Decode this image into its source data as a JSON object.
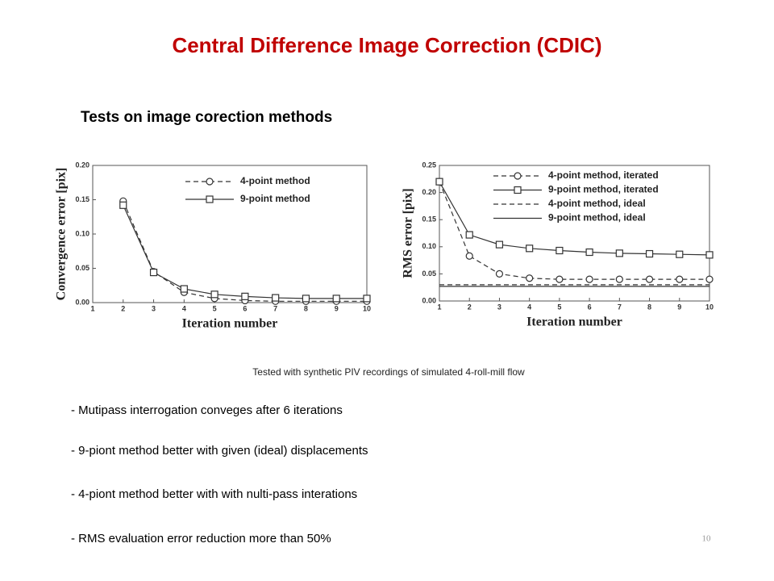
{
  "title": "Central Difference Image Correction (CDIC)",
  "subtitle": "Tests on image corection methods",
  "caption": "Tested with synthetic PIV recordings of simulated 4-roll-mill flow",
  "bullets": [
    "- Mutipass interrogation conveges after 6 iterations",
    "- 9-piont method better with given (ideal) displacements",
    "- 4-piont method better with with nulti-pass interations",
    "- RMS evaluation error reduction more than 50%"
  ],
  "page_number": "10",
  "chart_data": [
    {
      "type": "line",
      "xlabel": "Iteration number",
      "ylabel": "Convergence error [pix]",
      "x": [
        2,
        3,
        4,
        5,
        6,
        7,
        8,
        9,
        10
      ],
      "series": [
        {
          "name": "4-point method",
          "color": "#333333",
          "linestyle": "dashed",
          "marker": "circle",
          "values": [
            0.148,
            0.045,
            0.015,
            0.006,
            0.003,
            0.002,
            0.002,
            0.002,
            0.002
          ]
        },
        {
          "name": "9-point method",
          "color": "#333333",
          "linestyle": "solid",
          "marker": "square",
          "values": [
            0.142,
            0.044,
            0.02,
            0.012,
            0.009,
            0.007,
            0.006,
            0.006,
            0.006
          ]
        }
      ],
      "xlim": [
        1,
        10
      ],
      "xticks": [
        1,
        2,
        3,
        4,
        5,
        6,
        7,
        8,
        9,
        10
      ],
      "ylim": [
        0,
        0.2
      ],
      "yticks": [
        {
          "value": 0,
          "label": "0.00"
        },
        {
          "value": 0.05,
          "label": "0.05"
        },
        {
          "value": 0.1,
          "label": "0.10"
        },
        {
          "value": 0.15,
          "label": "0.15"
        },
        {
          "value": 0.2,
          "label": "0.20"
        }
      ],
      "grid": false
    },
    {
      "type": "line",
      "xlabel": "Iteration number",
      "ylabel": "RMS error [pix]",
      "x": [
        1,
        2,
        3,
        4,
        5,
        6,
        7,
        8,
        9,
        10
      ],
      "series": [
        {
          "name": "4-point method, iterated",
          "color": "#333333",
          "linestyle": "dashed",
          "marker": "circle",
          "values": [
            0.22,
            0.083,
            0.05,
            0.042,
            0.04,
            0.04,
            0.04,
            0.04,
            0.04,
            0.04
          ]
        },
        {
          "name": "9-point method, iterated",
          "color": "#333333",
          "linestyle": "solid",
          "marker": "square",
          "values": [
            0.22,
            0.122,
            0.104,
            0.097,
            0.093,
            0.09,
            0.088,
            0.087,
            0.086,
            0.085
          ]
        },
        {
          "name": "4-point method, ideal",
          "color": "#333333",
          "linestyle": "dashed",
          "values": [
            0.03,
            0.03,
            0.03,
            0.03,
            0.03,
            0.03,
            0.03,
            0.03,
            0.03,
            0.03
          ]
        },
        {
          "name": "9-point method, ideal",
          "color": "#333333",
          "linestyle": "solid",
          "values": [
            0.027,
            0.027,
            0.027,
            0.027,
            0.027,
            0.027,
            0.027,
            0.027,
            0.027,
            0.027
          ]
        }
      ],
      "xlim": [
        1,
        10
      ],
      "xticks": [
        1,
        2,
        3,
        4,
        5,
        6,
        7,
        8,
        9,
        10
      ],
      "ylim": [
        0,
        0.25
      ],
      "yticks": [
        {
          "value": 0,
          "label": "0.00"
        },
        {
          "value": 0.05,
          "label": "0.05"
        },
        {
          "value": 0.1,
          "label": "0.10"
        },
        {
          "value": 0.15,
          "label": "0.15"
        },
        {
          "value": 0.2,
          "label": "0.20"
        },
        {
          "value": 0.25,
          "label": "0.25"
        }
      ],
      "grid": false
    }
  ]
}
